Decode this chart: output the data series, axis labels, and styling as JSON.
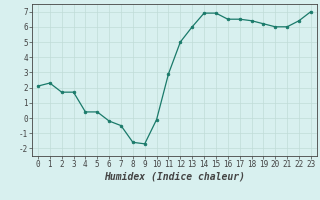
{
  "x": [
    0,
    1,
    2,
    3,
    4,
    5,
    6,
    7,
    8,
    9,
    10,
    11,
    12,
    13,
    14,
    15,
    16,
    17,
    18,
    19,
    20,
    21,
    22,
    23
  ],
  "y": [
    2.1,
    2.3,
    1.7,
    1.7,
    0.4,
    0.4,
    -0.2,
    -0.5,
    -1.6,
    -1.7,
    -0.1,
    2.9,
    5.0,
    6.0,
    6.9,
    6.9,
    6.5,
    6.5,
    6.4,
    6.2,
    6.0,
    6.0,
    6.4,
    7.0
  ],
  "line_color": "#1a7a6a",
  "marker_color": "#1a7a6a",
  "bg_color": "#d8f0ef",
  "grid_color": "#c0dcd8",
  "axis_color": "#444444",
  "xlabel": "Humidex (Indice chaleur)",
  "ylim": [
    -2.5,
    7.5
  ],
  "xlim": [
    -0.5,
    23.5
  ],
  "yticks": [
    -2,
    -1,
    0,
    1,
    2,
    3,
    4,
    5,
    6,
    7
  ],
  "xticks": [
    0,
    1,
    2,
    3,
    4,
    5,
    6,
    7,
    8,
    9,
    10,
    11,
    12,
    13,
    14,
    15,
    16,
    17,
    18,
    19,
    20,
    21,
    22,
    23
  ],
  "fontsize_xlabel": 7,
  "fontsize_ticks": 5.5
}
